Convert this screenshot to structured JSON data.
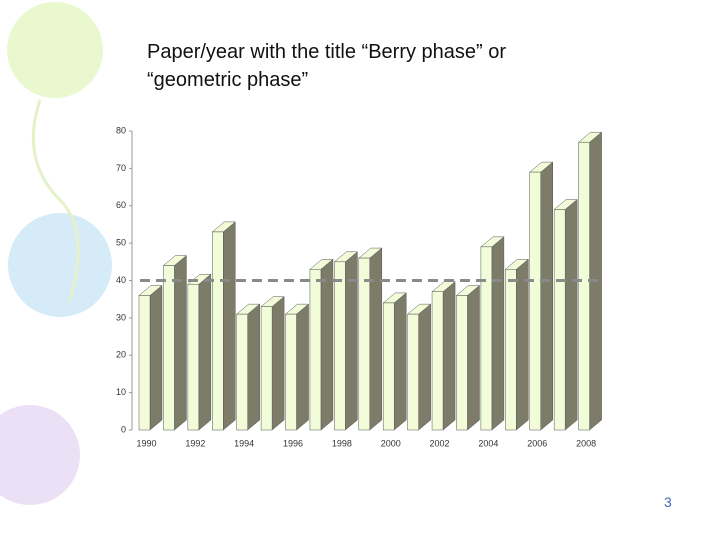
{
  "slide": {
    "title": "Paper/year with the title “Berry phase” or “geometric phase”",
    "page_number": "3"
  },
  "chart_data": {
    "type": "bar3d",
    "categories": [
      "1990",
      null,
      "1992",
      null,
      "1994",
      null,
      "1996",
      null,
      "1998",
      null,
      "2000",
      null,
      "2002",
      null,
      "2004",
      null,
      "2006",
      null,
      "2008"
    ],
    "values": [
      36,
      44,
      39,
      53,
      31,
      33,
      31,
      43,
      45,
      46,
      34,
      31,
      37,
      36,
      49,
      43,
      69,
      59,
      77
    ],
    "color": "#f2fcd9",
    "side_color": "#7d7c68",
    "ylim": [
      0,
      80
    ],
    "yticks": [
      0,
      10,
      20,
      30,
      40,
      50,
      60,
      70,
      80
    ],
    "reference_line": 40,
    "reference_color": "#8a8a8a"
  }
}
